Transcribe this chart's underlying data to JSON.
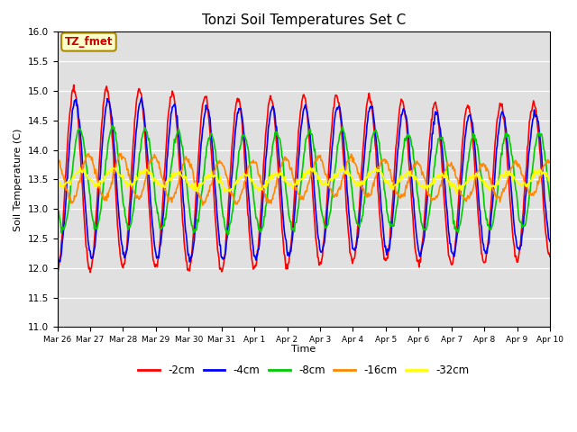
{
  "title": "Tonzi Soil Temperatures Set C",
  "xlabel": "Time",
  "ylabel": "Soil Temperature (C)",
  "ylim": [
    11.0,
    16.0
  ],
  "yticks": [
    11.0,
    11.5,
    12.0,
    12.5,
    13.0,
    13.5,
    14.0,
    14.5,
    15.0,
    15.5,
    16.0
  ],
  "xtick_labels": [
    "Mar 26",
    "Mar 27",
    "Mar 28",
    "Mar 29",
    "Mar 30",
    "Mar 31",
    "Apr 1",
    "Apr 2",
    "Apr 3",
    "Apr 4",
    "Apr 5",
    "Apr 6",
    "Apr 7",
    "Apr 8",
    "Apr 9",
    "Apr 10"
  ],
  "legend_labels": [
    "-2cm",
    "-4cm",
    "-8cm",
    "-16cm",
    "-32cm"
  ],
  "legend_colors": [
    "#ff0000",
    "#0000ff",
    "#00cc00",
    "#ff8800",
    "#ffff00"
  ],
  "line_widths": [
    1.2,
    1.2,
    1.2,
    1.2,
    1.2
  ],
  "annotation_text": "TZ_fmet",
  "annotation_bgcolor": "#ffffcc",
  "annotation_edgecolor": "#aa8800",
  "annotation_textcolor": "#cc0000",
  "background_color": "#e0e0e0",
  "num_days": 15,
  "points_per_day": 48
}
